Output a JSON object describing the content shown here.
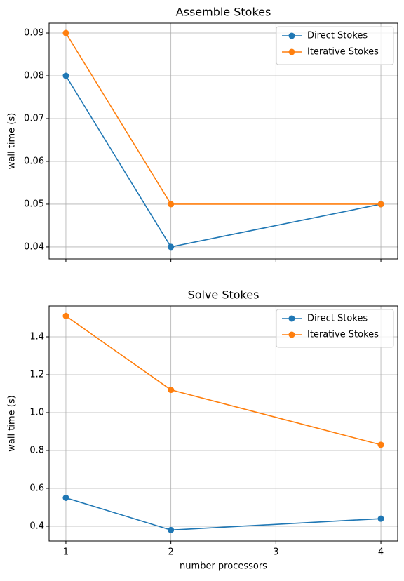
{
  "chart_data": [
    {
      "type": "line",
      "title": "Assemble Stokes",
      "y_label": "wall time (s)",
      "x": [
        1,
        2,
        4
      ],
      "series": [
        {
          "name": "Direct Stokes",
          "color": "#1f77b4",
          "values": [
            0.08,
            0.04,
            0.05
          ]
        },
        {
          "name": "Iterative Stokes",
          "color": "#ff7f0e",
          "values": [
            0.09,
            0.05,
            0.05
          ]
        }
      ],
      "xlim": [
        0.84,
        4.16
      ],
      "xticks": [
        1,
        2,
        3,
        4
      ],
      "ylim": [
        0.0372,
        0.0923
      ],
      "yticks": [
        0.04,
        0.05,
        0.06,
        0.07,
        0.08,
        0.09
      ],
      "grid": true,
      "legend": "upper right"
    },
    {
      "type": "line",
      "title": "Solve Stokes",
      "y_label": "wall time (s)",
      "x_label": "number processors",
      "x": [
        1,
        2,
        4
      ],
      "series": [
        {
          "name": "Direct Stokes",
          "color": "#1f77b4",
          "values": [
            0.55,
            0.38,
            0.44
          ]
        },
        {
          "name": "Iterative Stokes",
          "color": "#ff7f0e",
          "values": [
            1.51,
            1.12,
            0.83
          ]
        }
      ],
      "xlim": [
        0.84,
        4.16
      ],
      "xticks": [
        1,
        2,
        3,
        4
      ],
      "ylim": [
        0.322,
        1.563
      ],
      "yticks": [
        0.4,
        0.6,
        0.8,
        1.0,
        1.2,
        1.4
      ],
      "grid": true,
      "legend": "upper right"
    }
  ]
}
